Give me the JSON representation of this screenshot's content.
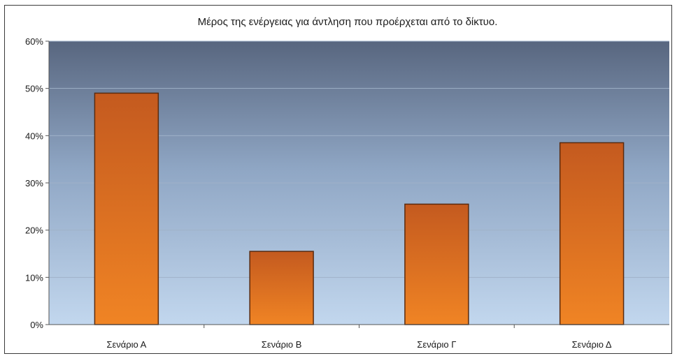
{
  "chart_data": {
    "type": "bar",
    "title": "Μέρος της ενέργειας για άντληση που προέρχεται από το δίκτυο.",
    "xlabel": "",
    "ylabel": "",
    "categories": [
      "Σενάριο Α",
      "Σενάριο Β",
      "Σενάριο Γ",
      "Σενάριο Δ"
    ],
    "values": [
      0.49,
      0.155,
      0.255,
      0.385
    ],
    "ylim": [
      0,
      0.6
    ],
    "yticks": [
      {
        "value": 0,
        "label": "0%"
      },
      {
        "value": 0.1,
        "label": "10%"
      },
      {
        "value": 0.2,
        "label": "20%"
      },
      {
        "value": 0.3,
        "label": "30%"
      },
      {
        "value": 0.4,
        "label": "40%"
      },
      {
        "value": 0.5,
        "label": "50%"
      },
      {
        "value": 0.6,
        "label": "60%"
      }
    ],
    "grid": true,
    "legend": "none",
    "colors": {
      "bar_top": "#c45a1f",
      "bar_bottom": "#f08424",
      "bar_edge": "#5a2a0e",
      "plot_bg_top": "#58667f",
      "plot_bg_bottom": "#c2d7ee",
      "gridline": "#9fb2c8"
    }
  }
}
